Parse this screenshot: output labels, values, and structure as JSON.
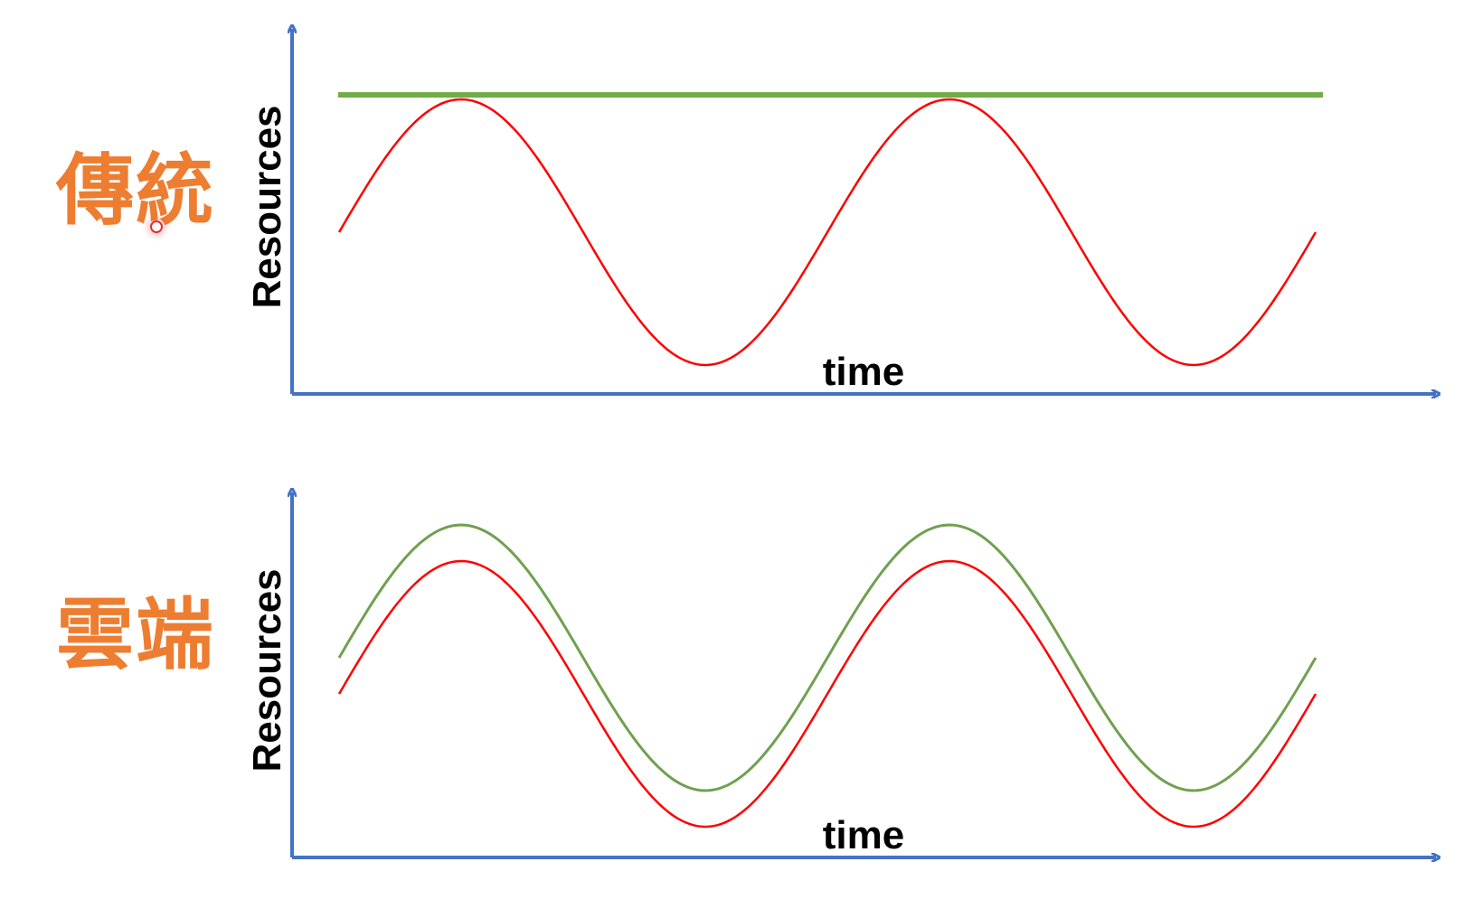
{
  "labels": {
    "traditional": "傳統",
    "cloud": "雲端"
  },
  "panels": [
    {
      "id": "traditional",
      "ylabel": "Resources",
      "xlabel": "time",
      "capacity": "constant",
      "capacity_color": "#70ad47",
      "demand_color": "#ff0000"
    },
    {
      "id": "cloud",
      "ylabel": "Resources",
      "xlabel": "time",
      "capacity": "follows demand",
      "capacity_color": "#70a050",
      "demand_color": "#ff0000"
    }
  ],
  "colors": {
    "axis": "#4472c4",
    "label": "#ed7d31"
  }
}
